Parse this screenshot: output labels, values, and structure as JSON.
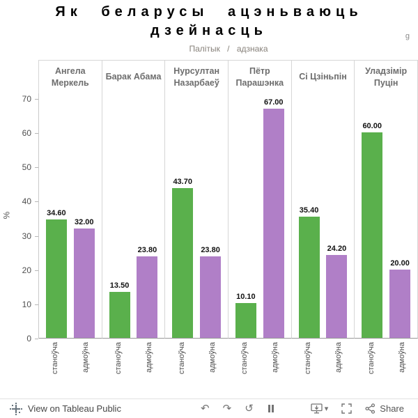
{
  "title": {
    "line1": "Як беларусы ацэньваюць",
    "line2": "дзейнасць",
    "corner_fragment": "g"
  },
  "chart_data": {
    "type": "bar",
    "title": "Як беларусы ацэньваюць дзейнасць",
    "col_header": "Палітык / адзнака",
    "ylabel": "%",
    "ylim": [
      0,
      70
    ],
    "yticks": [
      0,
      10,
      20,
      30,
      40,
      50,
      60,
      70
    ],
    "grid": "column-dividers-only",
    "legend_position": "none",
    "series_categories": [
      "станоўча",
      "адмоўна"
    ],
    "series_colors": [
      "#5ab04c",
      "#b07fc7"
    ],
    "groups": [
      {
        "name": "Ангела Меркель",
        "values": [
          34.6,
          32.0
        ],
        "value_labels": [
          "34.60",
          "32.00"
        ]
      },
      {
        "name": "Барак Абама",
        "values": [
          13.5,
          23.8
        ],
        "value_labels": [
          "13.50",
          "23.80"
        ]
      },
      {
        "name": "Нурсултан Назарбаеў",
        "values": [
          43.7,
          23.8
        ],
        "value_labels": [
          "43.70",
          "23.80"
        ]
      },
      {
        "name": "Пётр Парашэнка",
        "values": [
          10.1,
          67.0
        ],
        "value_labels": [
          "10.10",
          "67.00"
        ]
      },
      {
        "name": "Сі Цзіньпін",
        "values": [
          35.4,
          24.2
        ],
        "value_labels": [
          "35.40",
          "24.20"
        ]
      },
      {
        "name": "Уладзімір Пуцін",
        "values": [
          60.0,
          20.0
        ],
        "value_labels": [
          "60.00",
          "20.00"
        ]
      }
    ]
  },
  "footer": {
    "view_label": "View on Tableau Public",
    "share_label": "Share",
    "glyphs": {
      "undo": "↶",
      "redo": "↷",
      "replay": "↺",
      "chevron_down": "▾"
    }
  }
}
